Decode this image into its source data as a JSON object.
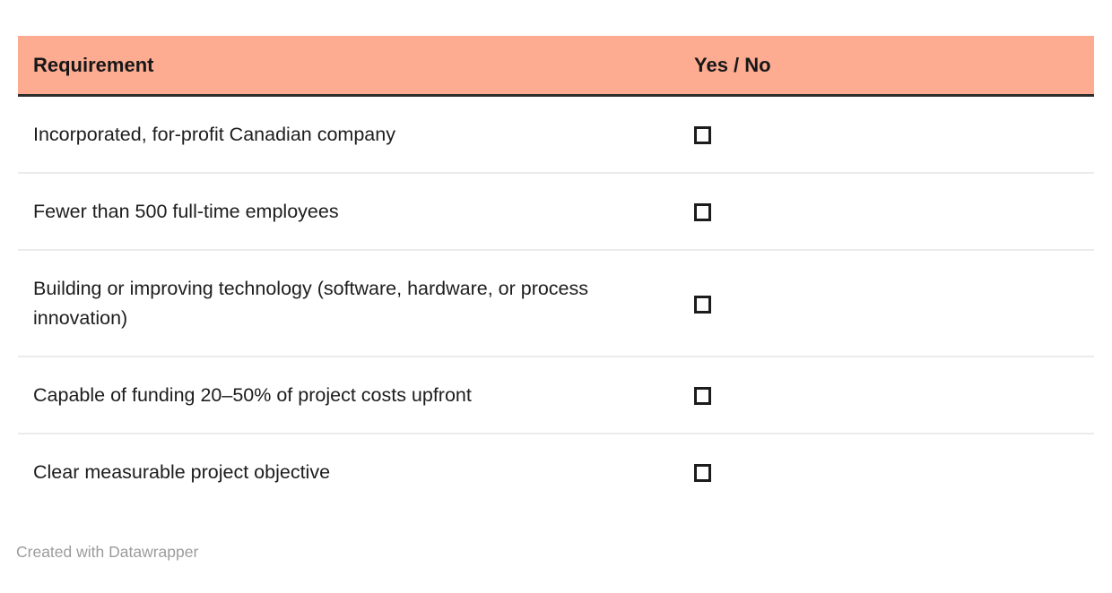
{
  "chart_data": {
    "type": "table",
    "columns": [
      "Requirement",
      "Yes / No"
    ],
    "rows": [
      {
        "requirement": "Incorporated, for-profit Canadian company",
        "checkbox_checked": false
      },
      {
        "requirement": "Fewer than 500 full-time employees",
        "checkbox_checked": false
      },
      {
        "requirement": "Building or improving technology (software, hardware, or process innovation)",
        "checkbox_checked": false
      },
      {
        "requirement": "Capable of funding 20–50% of project costs upfront",
        "checkbox_checked": false
      },
      {
        "requirement": "Clear measurable project objective",
        "checkbox_checked": false
      }
    ],
    "legend_position": "none",
    "grid": "horizontal-row-separators"
  },
  "icons": {
    "checkbox": "empty-square-checkbox",
    "checkbox_glyph": "☐"
  },
  "footer": {
    "attribution": "Created with Datawrapper"
  },
  "colors": {
    "header_bg": "#fdac92",
    "header_border": "#2e2e2e",
    "row_separator": "#ebebeb",
    "body_text": "#1d1d1d",
    "header_text": "#171717",
    "footer_text": "#9c9c9c",
    "checkbox_border": "#1c1c1c",
    "background": "#ffffff"
  }
}
